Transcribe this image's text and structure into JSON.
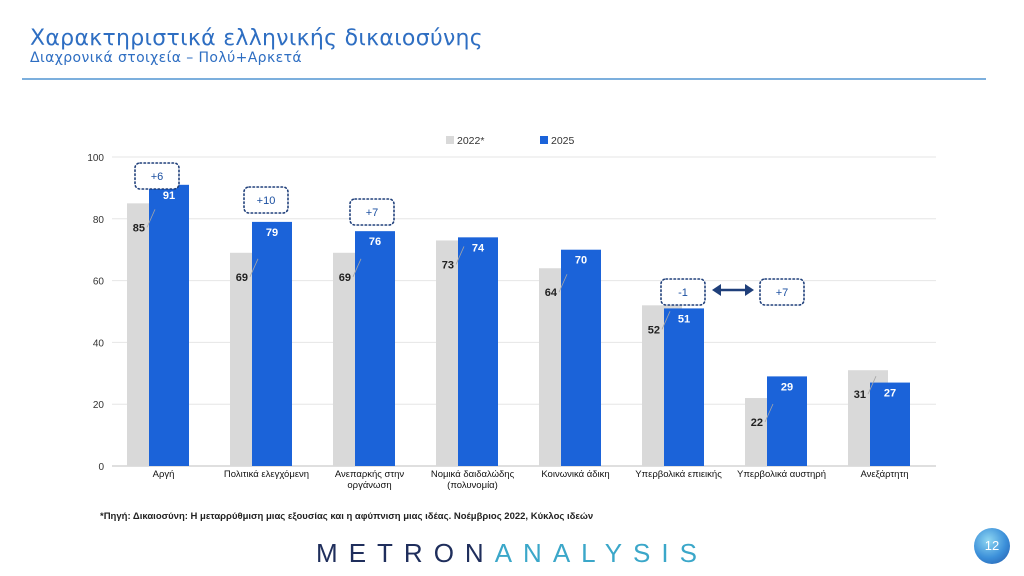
{
  "header": {
    "title": "Χαρακτηριστικά ελληνικής δικαιοσύνης",
    "subtitle": "Διαχρονικά στοιχεία – Πολύ+Αρκετά"
  },
  "chart_data": {
    "type": "bar",
    "categories": [
      "Αργή",
      "Πολιτικά ελεγχόμενη",
      "Ανεπαρκής στην οργάνωση",
      "Νομικά δαιδαλώδης (πολυνομία)",
      "Κοινωνικά άδικη",
      "Υπερβολικά επιεικής",
      "Υπερβολικά αυστηρή",
      "Ανεξάρτητη"
    ],
    "category_lines": [
      [
        "Αργή"
      ],
      [
        "Πολιτικά ελεγχόμενη"
      ],
      [
        "Ανεπαρκής στην",
        "οργάνωση"
      ],
      [
        "Νομικά δαιδαλώδης",
        "(πολυνομία)"
      ],
      [
        "Κοινωνικά άδικη"
      ],
      [
        "Υπερβολικά επιεικής"
      ],
      [
        "Υπερβολικά αυστηρή"
      ],
      [
        "Ανεξάρτητη"
      ]
    ],
    "series": [
      {
        "name": "2022*",
        "color": "#D9D9D9",
        "values": [
          85,
          69,
          69,
          73,
          64,
          52,
          22,
          31
        ]
      },
      {
        "name": "2025",
        "color": "#1B63D9",
        "values": [
          91,
          79,
          76,
          74,
          70,
          51,
          29,
          27
        ]
      }
    ],
    "ylim": [
      0,
      100
    ],
    "yticks": [
      0,
      20,
      40,
      60,
      80,
      100
    ],
    "legend": "top",
    "grid": true,
    "annotations": [
      {
        "category": 0,
        "text": "+6"
      },
      {
        "category": 1,
        "text": "+10"
      },
      {
        "category": 2,
        "text": "+7"
      },
      {
        "category": 5,
        "text": "-1"
      },
      {
        "category": 6,
        "text": "+7"
      }
    ]
  },
  "source": "*Πηγή: Δικαιοσύνη: Η μεταρρύθμιση μιας εξουσίας και η αφύπνιση μιας ιδέας. Νοέμβριος 2022, Κύκλος ιδεών",
  "logo": {
    "part1": "METRON",
    "part2": "ANALYSIS"
  },
  "page_number": "12"
}
